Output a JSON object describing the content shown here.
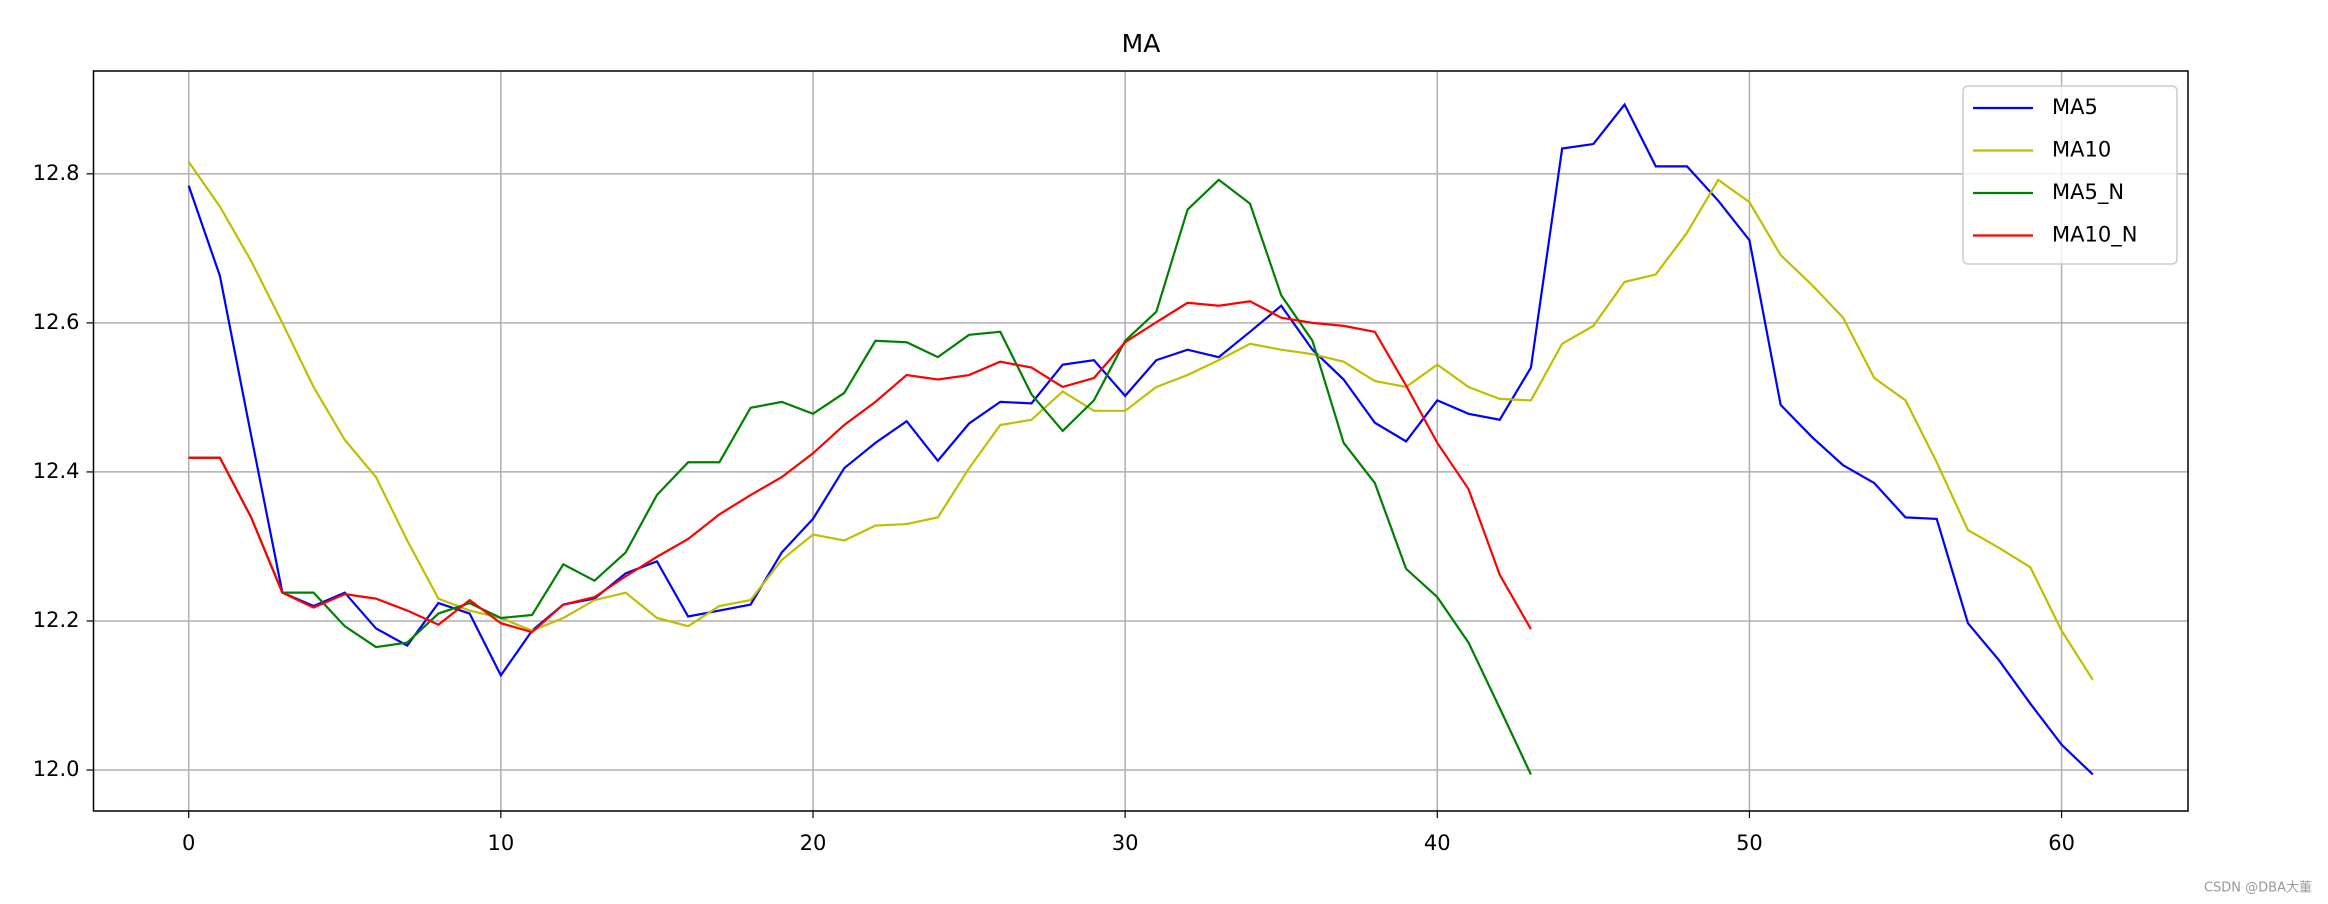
{
  "chart_data": {
    "type": "line",
    "title": "MA",
    "x": [
      0,
      1,
      2,
      3,
      4,
      5,
      6,
      7,
      8,
      9,
      10,
      11,
      12,
      13,
      14,
      15,
      16,
      17,
      18,
      19,
      20,
      21,
      22,
      23,
      24,
      25,
      26,
      27,
      28,
      29,
      30,
      31,
      32,
      33,
      34,
      35,
      36,
      37,
      38,
      39,
      40,
      41,
      42,
      43,
      44,
      45,
      46,
      47,
      48,
      49,
      50,
      51,
      52,
      53,
      54,
      55,
      56,
      57,
      58,
      59,
      60,
      61
    ],
    "series": [
      {
        "name": "MA5",
        "color": "#0000ff",
        "values": [
          12.784,
          12.663,
          12.449,
          12.238,
          12.22,
          12.238,
          12.19,
          12.167,
          12.224,
          12.21,
          12.127,
          12.187,
          12.222,
          12.23,
          12.264,
          12.28,
          12.206,
          12.214,
          12.222,
          12.292,
          12.337,
          12.405,
          12.439,
          12.468,
          12.415,
          12.465,
          12.494,
          12.492,
          12.544,
          12.55,
          12.502,
          12.55,
          12.564,
          12.554,
          12.588,
          12.623,
          12.564,
          12.524,
          12.466,
          12.441,
          12.496,
          12.478,
          12.47,
          12.54,
          12.834,
          12.84,
          12.893,
          12.81,
          12.81,
          12.764,
          12.711,
          12.49,
          12.447,
          12.409,
          12.385,
          12.339,
          12.337,
          12.197,
          12.147,
          12.089,
          12.034,
          11.994
        ]
      },
      {
        "name": "MA10",
        "color": "#bfbf00",
        "values": [
          12.816,
          12.756,
          12.683,
          12.6,
          12.514,
          12.443,
          12.393,
          12.308,
          12.23,
          12.214,
          12.204,
          12.187,
          12.204,
          12.228,
          12.238,
          12.204,
          12.193,
          12.22,
          12.228,
          12.282,
          12.316,
          12.308,
          12.328,
          12.33,
          12.339,
          12.405,
          12.463,
          12.47,
          12.508,
          12.482,
          12.482,
          12.514,
          12.53,
          12.55,
          12.572,
          12.564,
          12.558,
          12.548,
          12.522,
          12.514,
          12.544,
          12.514,
          12.498,
          12.496,
          12.572,
          12.596,
          12.655,
          12.665,
          12.721,
          12.792,
          12.762,
          12.691,
          12.651,
          12.607,
          12.526,
          12.496,
          12.413,
          12.322,
          12.298,
          12.272,
          12.187,
          12.121
        ]
      },
      {
        "name": "MA5_N",
        "color": "#008000",
        "values": [
          12.419,
          12.419,
          12.339,
          12.238,
          12.238,
          12.193,
          12.165,
          12.171,
          12.21,
          12.224,
          12.204,
          12.208,
          12.276,
          12.254,
          12.292,
          12.369,
          12.413,
          12.413,
          12.486,
          12.494,
          12.478,
          12.506,
          12.576,
          12.574,
          12.554,
          12.584,
          12.588,
          12.504,
          12.455,
          12.496,
          12.576,
          12.615,
          12.752,
          12.792,
          12.76,
          12.637,
          12.576,
          12.439,
          12.385,
          12.27,
          12.232,
          12.171,
          12.083,
          11.994,
          null,
          null,
          null,
          null,
          null,
          null,
          null,
          null,
          null,
          null,
          null,
          null,
          null,
          null,
          null,
          null,
          null,
          null
        ]
      },
      {
        "name": "MA10_N",
        "color": "#ff0000",
        "values": [
          12.419,
          12.419,
          12.339,
          12.238,
          12.218,
          12.236,
          12.23,
          12.214,
          12.195,
          12.228,
          12.197,
          12.185,
          12.222,
          12.232,
          12.26,
          12.286,
          12.31,
          12.343,
          12.369,
          12.393,
          12.425,
          12.463,
          12.494,
          12.53,
          12.524,
          12.53,
          12.548,
          12.54,
          12.514,
          12.526,
          12.574,
          12.601,
          12.627,
          12.623,
          12.629,
          12.607,
          12.6,
          12.596,
          12.588,
          12.516,
          12.439,
          12.377,
          12.262,
          12.189,
          null,
          null,
          null,
          null,
          null,
          null,
          null,
          null,
          null,
          null,
          null,
          null,
          null,
          null,
          null,
          null,
          null,
          null
        ]
      }
    ],
    "xlim": [
      -3.05,
      64.05
    ],
    "xticks": [
      0,
      10,
      20,
      30,
      40,
      50,
      60
    ],
    "ylim": [
      11.945,
      12.938
    ],
    "yticks": [
      {
        "value": 12.0,
        "label": "12.0"
      },
      12.2,
      12.4,
      12.6,
      12.8
    ],
    "grid": true,
    "legend": "upper right"
  },
  "watermark": "CSDN @DBA大董"
}
